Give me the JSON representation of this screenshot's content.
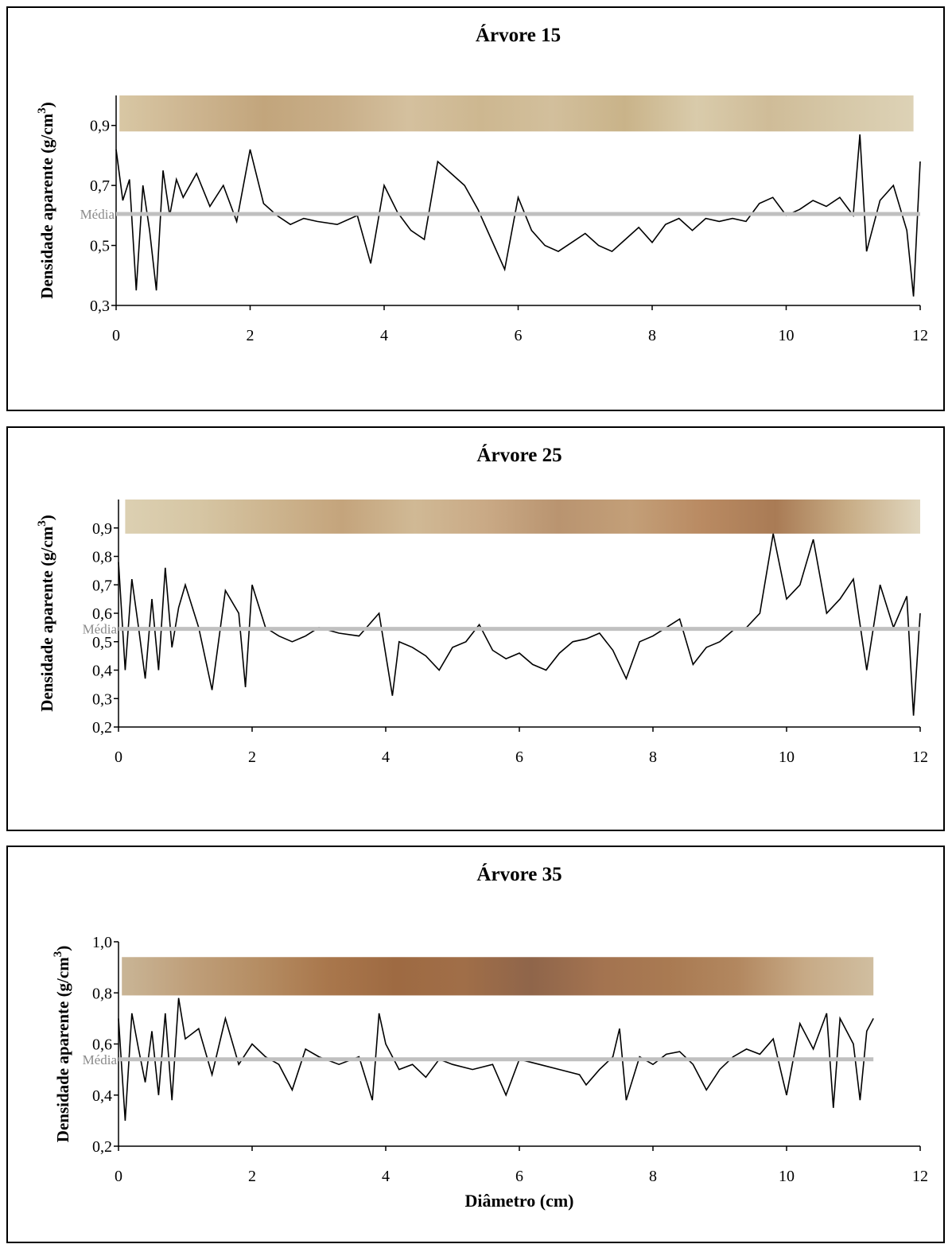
{
  "chart_data": [
    {
      "type": "line",
      "title": "Árvore 15",
      "ylabel": "Densidade aparente (g/cm",
      "ylabel_sup": "3",
      "ylabel_tail": ")",
      "xlabel": "",
      "xlim": [
        0,
        12
      ],
      "ylim": [
        0.3,
        1.0
      ],
      "xticks": [
        0,
        2,
        4,
        6,
        8,
        10,
        12
      ],
      "xtick_labels": [
        "0",
        "2",
        "4",
        "6",
        "8",
        "10",
        "12"
      ],
      "yticks": [
        0.3,
        0.5,
        0.7,
        0.9
      ],
      "ytick_labels": [
        "0,3",
        "0,5",
        "0,7",
        "0,9"
      ],
      "mean_label": "Média",
      "mean_value": 0.605,
      "line_color": "#000000",
      "mean_color": "#c0c0c0",
      "wood_strip": {
        "x_start": 0.05,
        "x_end": 11.9,
        "y_low": 0.88,
        "y_high": 1.0,
        "colors": [
          "#d8c7a4",
          "#cdb590",
          "#c2a57c",
          "#c8ae88",
          "#d4c09e",
          "#cdb790",
          "#d2bf9c",
          "#c9b389",
          "#d9cbab",
          "#cfbc98",
          "#d6c8a8",
          "#ddd2b6"
        ]
      },
      "x": [
        0.0,
        0.1,
        0.2,
        0.3,
        0.4,
        0.5,
        0.6,
        0.7,
        0.8,
        0.9,
        1.0,
        1.2,
        1.4,
        1.6,
        1.8,
        2.0,
        2.2,
        2.4,
        2.6,
        2.8,
        3.0,
        3.3,
        3.6,
        3.8,
        4.0,
        4.2,
        4.4,
        4.6,
        4.8,
        5.0,
        5.2,
        5.4,
        5.6,
        5.8,
        6.0,
        6.2,
        6.4,
        6.6,
        6.8,
        7.0,
        7.2,
        7.4,
        7.6,
        7.8,
        8.0,
        8.2,
        8.4,
        8.6,
        8.8,
        9.0,
        9.2,
        9.4,
        9.6,
        9.8,
        10.0,
        10.2,
        10.4,
        10.6,
        10.8,
        11.0,
        11.1,
        11.2,
        11.4,
        11.6,
        11.8,
        11.9,
        12.0
      ],
      "y": [
        0.82,
        0.65,
        0.72,
        0.35,
        0.7,
        0.55,
        0.35,
        0.75,
        0.6,
        0.72,
        0.66,
        0.74,
        0.63,
        0.7,
        0.58,
        0.82,
        0.64,
        0.6,
        0.57,
        0.59,
        0.58,
        0.57,
        0.6,
        0.44,
        0.7,
        0.61,
        0.55,
        0.52,
        0.78,
        0.74,
        0.7,
        0.62,
        0.52,
        0.42,
        0.66,
        0.55,
        0.5,
        0.48,
        0.51,
        0.54,
        0.5,
        0.48,
        0.52,
        0.56,
        0.51,
        0.57,
        0.59,
        0.55,
        0.59,
        0.58,
        0.59,
        0.58,
        0.64,
        0.66,
        0.6,
        0.62,
        0.65,
        0.63,
        0.66,
        0.6,
        0.87,
        0.48,
        0.65,
        0.7,
        0.55,
        0.33,
        0.78
      ]
    },
    {
      "type": "line",
      "title": "Árvore 25",
      "ylabel": "Densidade aparente (g/cm",
      "ylabel_sup": "3",
      "ylabel_tail": ")",
      "xlabel": "",
      "xlim": [
        0,
        12
      ],
      "ylim": [
        0.2,
        1.0
      ],
      "xticks": [
        0,
        2,
        4,
        6,
        8,
        10,
        12
      ],
      "xtick_labels": [
        "0",
        "2",
        "4",
        "6",
        "8",
        "10",
        "12"
      ],
      "yticks": [
        0.2,
        0.3,
        0.4,
        0.5,
        0.6,
        0.7,
        0.8,
        0.9
      ],
      "ytick_labels": [
        "0,2",
        "0,3",
        "0,4",
        "0,5",
        "0,6",
        "0,7",
        "0,8",
        "0,9"
      ],
      "mean_label": "Média",
      "mean_value": 0.545,
      "line_color": "#000000",
      "mean_color": "#c0c0c0",
      "wood_strip": {
        "x_start": 0.1,
        "x_end": 12.0,
        "y_low": 0.88,
        "y_high": 1.0,
        "colors": [
          "#dcd0b2",
          "#d6c6a4",
          "#cdb58f",
          "#c4a47c",
          "#d0b995",
          "#c9a985",
          "#b99470",
          "#c39f78",
          "#b98a62",
          "#a97b55",
          "#c8ad86",
          "#e0d6be"
        ]
      },
      "x": [
        0.0,
        0.1,
        0.2,
        0.3,
        0.4,
        0.5,
        0.6,
        0.7,
        0.8,
        0.9,
        1.0,
        1.2,
        1.4,
        1.6,
        1.8,
        1.9,
        2.0,
        2.2,
        2.4,
        2.6,
        2.8,
        3.0,
        3.3,
        3.6,
        3.9,
        4.1,
        4.2,
        4.4,
        4.6,
        4.8,
        5.0,
        5.2,
        5.4,
        5.6,
        5.8,
        6.0,
        6.2,
        6.4,
        6.6,
        6.8,
        7.0,
        7.2,
        7.4,
        7.6,
        7.8,
        8.0,
        8.2,
        8.4,
        8.6,
        8.8,
        9.0,
        9.2,
        9.4,
        9.6,
        9.8,
        10.0,
        10.2,
        10.4,
        10.6,
        10.8,
        11.0,
        11.2,
        11.4,
        11.6,
        11.8,
        11.9,
        12.0
      ],
      "y": [
        0.78,
        0.4,
        0.72,
        0.55,
        0.37,
        0.65,
        0.4,
        0.76,
        0.48,
        0.62,
        0.7,
        0.55,
        0.33,
        0.68,
        0.6,
        0.34,
        0.7,
        0.55,
        0.52,
        0.5,
        0.52,
        0.55,
        0.53,
        0.52,
        0.6,
        0.31,
        0.5,
        0.48,
        0.45,
        0.4,
        0.48,
        0.5,
        0.56,
        0.47,
        0.44,
        0.46,
        0.42,
        0.4,
        0.46,
        0.5,
        0.51,
        0.53,
        0.47,
        0.37,
        0.5,
        0.52,
        0.55,
        0.58,
        0.42,
        0.48,
        0.5,
        0.54,
        0.55,
        0.6,
        0.88,
        0.65,
        0.7,
        0.86,
        0.6,
        0.65,
        0.72,
        0.4,
        0.7,
        0.55,
        0.66,
        0.24,
        0.6
      ]
    },
    {
      "type": "line",
      "title": "Árvore 35",
      "ylabel": "Densidade aparente (g/cm",
      "ylabel_sup": "3",
      "ylabel_tail": ")",
      "xlabel": "Diâmetro (cm)",
      "xlim": [
        0,
        12
      ],
      "ylim": [
        0.2,
        1.0
      ],
      "xticks": [
        0,
        2,
        4,
        6,
        8,
        10,
        12
      ],
      "xtick_labels": [
        "0",
        "2",
        "4",
        "6",
        "8",
        "10",
        "12"
      ],
      "yticks": [
        0.2,
        0.4,
        0.6,
        0.8,
        1.0
      ],
      "ytick_labels": [
        "0,2",
        "0,4",
        "0,6",
        "0,8",
        "1,0"
      ],
      "mean_label": "Média",
      "mean_value": 0.54,
      "line_color": "#000000",
      "mean_color": "#c0c0c0",
      "wood_strip": {
        "x_start": 0.05,
        "x_end": 11.3,
        "y_low": 0.79,
        "y_high": 0.94,
        "colors": [
          "#c9b596",
          "#bf9f7a",
          "#b58d63",
          "#a9774c",
          "#9e6a42",
          "#a06e48",
          "#8f654a",
          "#a37350",
          "#a97a52",
          "#b2875f",
          "#c7aa86",
          "#d0bea0"
        ]
      },
      "x": [
        0.0,
        0.1,
        0.2,
        0.3,
        0.4,
        0.5,
        0.6,
        0.7,
        0.8,
        0.9,
        1.0,
        1.2,
        1.4,
        1.6,
        1.8,
        2.0,
        2.2,
        2.4,
        2.6,
        2.8,
        3.0,
        3.3,
        3.6,
        3.8,
        3.9,
        4.0,
        4.2,
        4.4,
        4.6,
        4.8,
        5.0,
        5.3,
        5.6,
        5.8,
        6.0,
        6.3,
        6.6,
        6.9,
        7.0,
        7.2,
        7.4,
        7.5,
        7.6,
        7.8,
        8.0,
        8.2,
        8.4,
        8.6,
        8.8,
        9.0,
        9.2,
        9.4,
        9.6,
        9.8,
        10.0,
        10.2,
        10.4,
        10.6,
        10.7,
        10.8,
        11.0,
        11.1,
        11.2,
        11.3
      ],
      "y": [
        0.7,
        0.3,
        0.72,
        0.58,
        0.45,
        0.65,
        0.4,
        0.72,
        0.38,
        0.78,
        0.62,
        0.66,
        0.48,
        0.7,
        0.52,
        0.6,
        0.55,
        0.52,
        0.42,
        0.58,
        0.55,
        0.52,
        0.55,
        0.38,
        0.72,
        0.6,
        0.5,
        0.52,
        0.47,
        0.54,
        0.52,
        0.5,
        0.52,
        0.4,
        0.54,
        0.52,
        0.5,
        0.48,
        0.44,
        0.5,
        0.55,
        0.66,
        0.38,
        0.55,
        0.52,
        0.56,
        0.57,
        0.52,
        0.42,
        0.5,
        0.55,
        0.58,
        0.56,
        0.62,
        0.4,
        0.68,
        0.58,
        0.72,
        0.35,
        0.7,
        0.6,
        0.38,
        0.65,
        0.7
      ]
    }
  ]
}
